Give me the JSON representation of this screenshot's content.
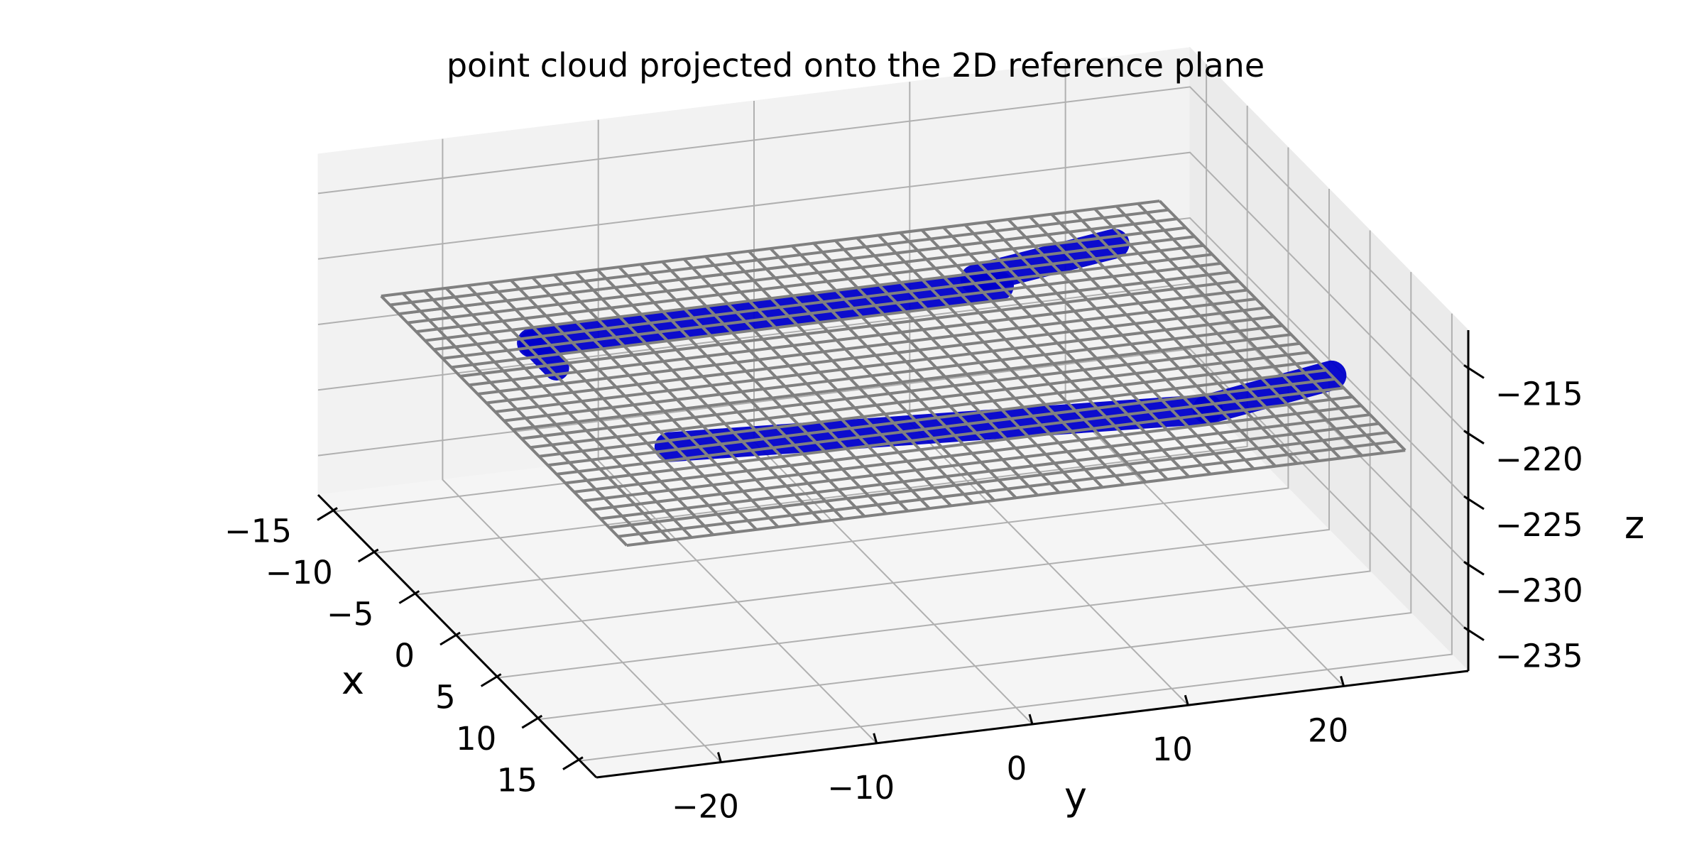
{
  "chart_data": {
    "type": "scatter",
    "projection": "3d",
    "title": "point cloud projected onto the 2D reference plane",
    "xlabel": "x",
    "ylabel": "y",
    "zlabel": "z",
    "x_ticks": [
      -15,
      -10,
      -5,
      0,
      5,
      10,
      15
    ],
    "x_tick_labels": [
      "−15",
      "−10",
      "−5",
      "0",
      "5",
      "10",
      "15"
    ],
    "y_ticks": [
      -20,
      -10,
      0,
      10,
      20
    ],
    "y_tick_labels": [
      "−20",
      "−10",
      "0",
      "10",
      "20"
    ],
    "z_ticks": [
      -215,
      -220,
      -225,
      -230,
      -235
    ],
    "z_tick_labels": [
      "−215",
      "−220",
      "−225",
      "−230",
      "−235"
    ],
    "xlim": [
      -17,
      17
    ],
    "ylim": [
      -28,
      28
    ],
    "zlim": [
      -238,
      -212
    ],
    "grid": true,
    "series": [
      {
        "kind": "points",
        "color": "#0000cc",
        "z": -222,
        "description_strokes": [
          {
            "from": [
              -8,
              -19
            ],
            "to": [
              -8,
              11
            ],
            "width": 3.5
          },
          {
            "from": [
              -9,
              10
            ],
            "to": [
              -11,
              20
            ],
            "width": 3.5
          },
          {
            "from": [
              5,
              -17
            ],
            "to": [
              8,
              16
            ],
            "width": 3.5
          },
          {
            "from": [
              8,
              16
            ],
            "to": [
              6,
              25
            ],
            "width": 3.5
          },
          {
            "from": [
              -8,
              -19
            ],
            "to": [
              -5,
              -19
            ],
            "width": 3.0
          }
        ]
      },
      {
        "kind": "wireframe_plane",
        "color": "#808080",
        "z": -222,
        "x_range": [
          -15,
          15
        ],
        "y_range": [
          -25,
          25
        ],
        "rows": 28,
        "cols": 36
      }
    ]
  }
}
